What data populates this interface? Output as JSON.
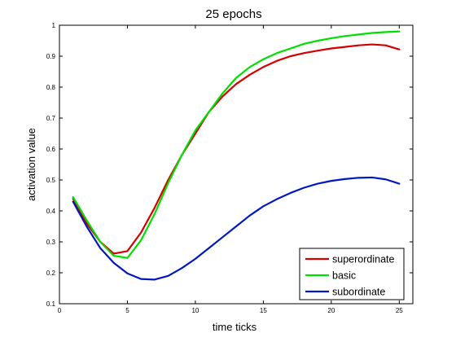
{
  "chart_data": {
    "type": "line",
    "title": "25 epochs",
    "xlabel": "time ticks",
    "ylabel": "activation value",
    "xlim": [
      0,
      26
    ],
    "ylim": [
      0.1,
      1
    ],
    "xticks": [
      0,
      5,
      10,
      15,
      20,
      25
    ],
    "yticks": [
      0.1,
      0.2,
      0.3,
      0.4,
      0.5,
      0.6,
      0.7,
      0.8,
      0.9,
      1
    ],
    "grid": false,
    "legend": "bottom-right",
    "x": [
      1,
      2,
      3,
      4,
      5,
      6,
      7,
      8,
      9,
      10,
      11,
      12,
      13,
      14,
      15,
      16,
      17,
      18,
      19,
      20,
      21,
      22,
      23,
      24,
      25
    ],
    "series": [
      {
        "name": "superordinate",
        "color": "#d40000",
        "values": [
          0.44,
          0.36,
          0.3,
          0.262,
          0.27,
          0.33,
          0.41,
          0.5,
          0.58,
          0.65,
          0.72,
          0.77,
          0.81,
          0.84,
          0.865,
          0.885,
          0.9,
          0.91,
          0.918,
          0.925,
          0.93,
          0.935,
          0.938,
          0.935,
          0.922
        ]
      },
      {
        "name": "basic",
        "color": "#00e000",
        "values": [
          0.445,
          0.37,
          0.3,
          0.255,
          0.248,
          0.305,
          0.39,
          0.49,
          0.58,
          0.66,
          0.72,
          0.78,
          0.83,
          0.865,
          0.89,
          0.91,
          0.925,
          0.94,
          0.95,
          0.958,
          0.965,
          0.97,
          0.975,
          0.978,
          0.98
        ]
      },
      {
        "name": "subordinate",
        "color": "#0018c0",
        "values": [
          0.43,
          0.35,
          0.28,
          0.232,
          0.198,
          0.18,
          0.178,
          0.19,
          0.215,
          0.245,
          0.28,
          0.315,
          0.35,
          0.385,
          0.415,
          0.438,
          0.458,
          0.475,
          0.488,
          0.497,
          0.503,
          0.507,
          0.508,
          0.502,
          0.488
        ]
      }
    ]
  }
}
